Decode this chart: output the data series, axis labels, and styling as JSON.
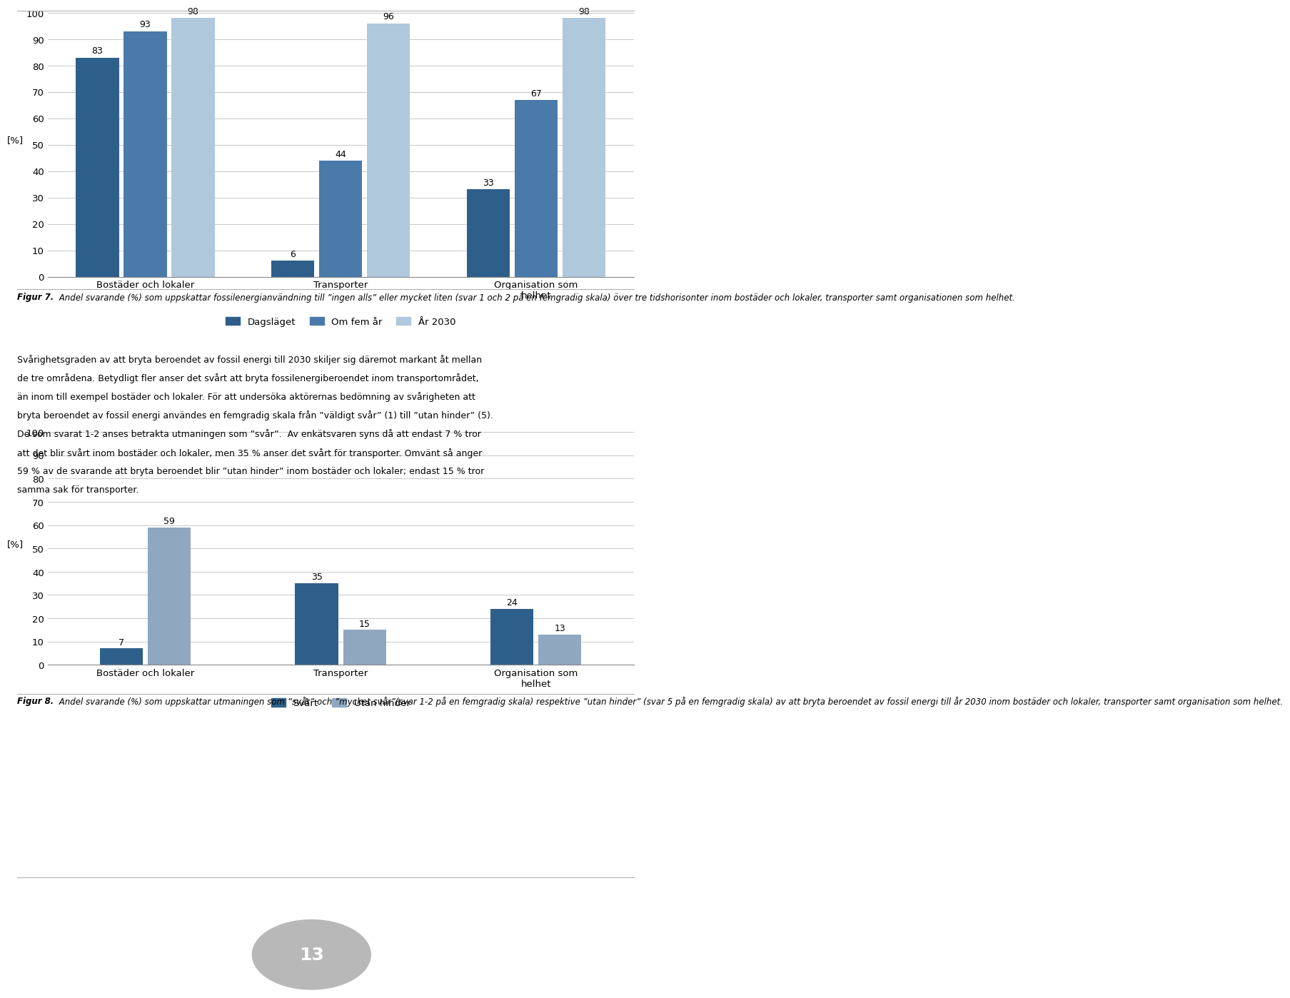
{
  "chart1": {
    "categories": [
      "Bostäder och lokaler",
      "Transporter",
      "Organisation som\nhelhet"
    ],
    "series": {
      "Dagsläget": [
        83,
        6,
        33
      ],
      "Om fem år": [
        93,
        44,
        67
      ],
      "År 2030": [
        98,
        96,
        98
      ]
    },
    "colors": {
      "Dagsläget": "#2e5f8a",
      "Om fem år": "#4a7aaa",
      "År 2030": "#b0c8dc"
    },
    "ylabel": "[%]",
    "ylim": [
      0,
      100
    ],
    "yticks": [
      0,
      10,
      20,
      30,
      40,
      50,
      60,
      70,
      80,
      90,
      100
    ]
  },
  "chart2": {
    "categories": [
      "Bostäder och lokaler",
      "Transporter",
      "Organisation som\nhelhet"
    ],
    "series": {
      "Svårt": [
        7,
        35,
        24
      ],
      "Utan hinder": [
        59,
        15,
        13
      ]
    },
    "colors": {
      "Svårt": "#2e5f8a",
      "Utan hinder": "#8fa8c0"
    },
    "ylabel": "[%]",
    "ylim": [
      0,
      100
    ],
    "yticks": [
      0,
      10,
      20,
      30,
      40,
      50,
      60,
      70,
      80,
      90,
      100
    ]
  },
  "figure7_caption_bold": "Figur 7.",
  "figure7_caption_rest": " Andel svarande (%) som uppskattar fossilenergianvändning till ”ingen alls” eller mycket liten (svar 1 och 2 på en femgradig skala) över tre tidshorisonter inom bostäder och lokaler, transporter samt organisationen som helhet.",
  "figure8_caption_bold": "Figur 8.",
  "figure8_caption_rest": " Andel svarande (%) som uppskattar utmaningen som ”svår” och ”mycket svår”(svar 1-2 på en femgradig skala) respektive ”utan hinder” (svar 5 på en femgradig skala) av att bryta beroendet av fossil energi till år 2030 inom bostäder och lokaler, transporter samt organisation som helhet.",
  "body_text_lines": [
    "Svårighetsgraden av att bryta beroendet av fossil energi till 2030 skiljer sig däremot markant åt mellan",
    "de tre områdena. Betydligt fler anser det svårt att bryta fossilenergiberoendet inom transportområdet,",
    "än inom till exempel bostäder och lokaler. För att undersöka aktörernas bedömning av svårigheten att",
    "bryta beroendet av fossil energi användes en femgradig skala från ”väldigt svår” (1) till ”utan hinder” (5).",
    "De som svarat 1-2 anses betrakta utmaningen som ”svår”.  Av enkätsvaren syns då att endast 7 % tror",
    "att det blir svårt inom bostäder och lokaler, men 35 % anser det svårt för transporter. Omvänt så anger",
    "59 % av de svarande att bryta beroendet blir ”utan hinder” inom bostäder och lokaler; endast 15 % tror",
    "samma sak för transporter."
  ],
  "page_number": "13",
  "background_color": "#ffffff",
  "bar_width": 0.22,
  "bar_gap": 0.025
}
